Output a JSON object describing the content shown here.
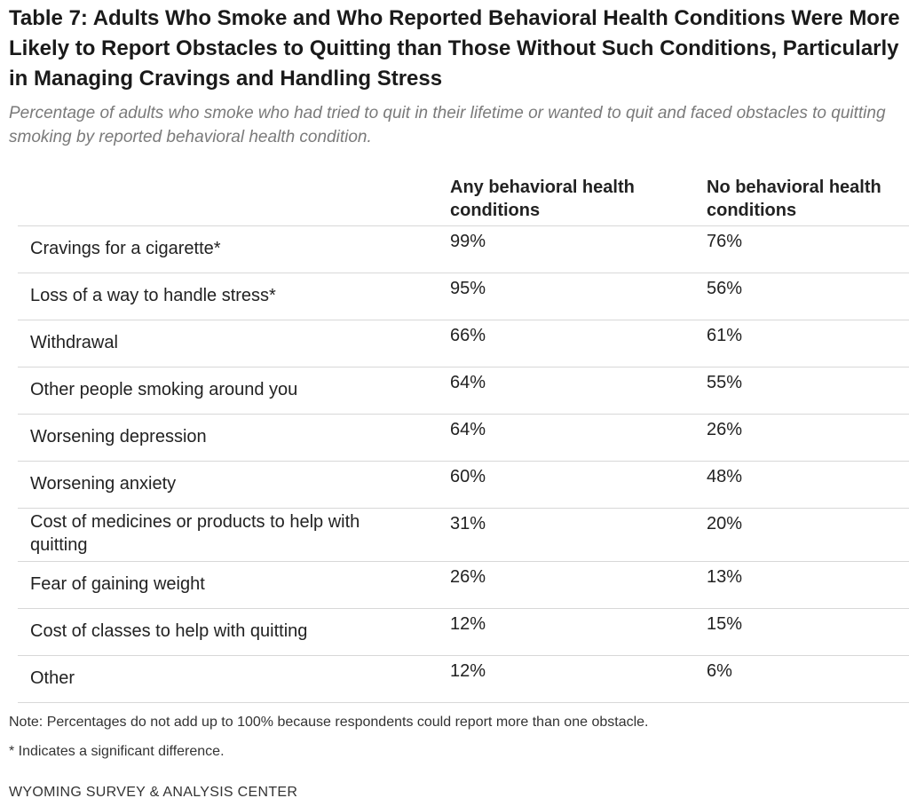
{
  "title": "Table 7: Adults Who Smoke and Who Reported Behavioral Health Conditions Were More Likely to Report Obstacles to Quitting than Those Without Such Conditions, Particularly in Managing Cravings and Handling Stress",
  "subtitle": "Percentage of adults who smoke who had tried to quit in their lifetime or wanted to quit and faced obstacles to quitting smoking by reported behavioral health condition.",
  "note": "Note: Percentages do not add up to 100% because respondents could report more than one obstacle.",
  "significance_note": "* Indicates a significant difference.",
  "source": "WYOMING SURVEY & ANALYSIS CENTER",
  "chart_data": {
    "type": "table",
    "columns": [
      "",
      "Any behavioral health conditions",
      "No behavioral health conditions"
    ],
    "rows": [
      {
        "label": "Cravings for a cigarette*",
        "any": "99%",
        "none": "76%"
      },
      {
        "label": "Loss of a way to handle stress*",
        "any": "95%",
        "none": "56%"
      },
      {
        "label": "Withdrawal",
        "any": "66%",
        "none": "61%"
      },
      {
        "label": "Other people smoking around you",
        "any": "64%",
        "none": "55%"
      },
      {
        "label": "Worsening depression",
        "any": "64%",
        "none": "26%"
      },
      {
        "label": "Worsening anxiety",
        "any": "60%",
        "none": "48%"
      },
      {
        "label": "Cost of medicines or products to help with quitting",
        "any": "31%",
        "none": "20%"
      },
      {
        "label": "Fear of gaining weight",
        "any": "26%",
        "none": "13%"
      },
      {
        "label": "Cost of classes to help with quitting",
        "any": "12%",
        "none": "15%"
      },
      {
        "label": "Other",
        "any": "12%",
        "none": "6%"
      }
    ]
  }
}
